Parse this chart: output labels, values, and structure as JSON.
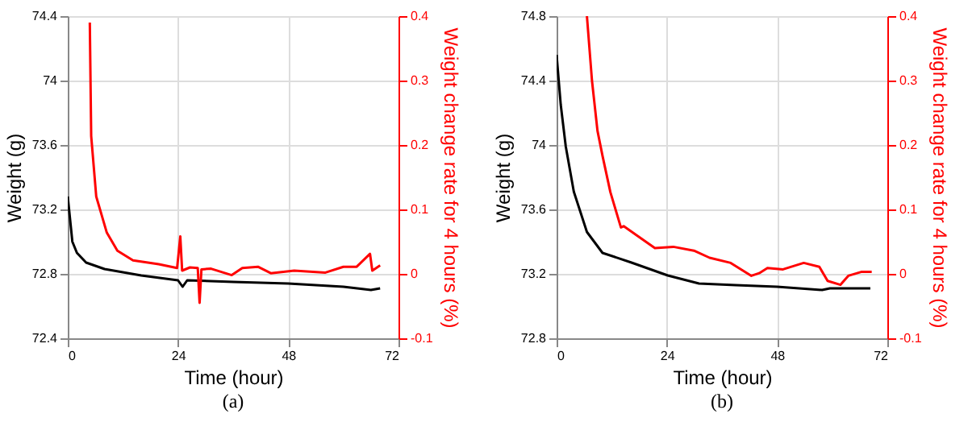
{
  "chart_data": [
    {
      "type": "line",
      "xlabel": "Time (hour)",
      "ylabel": "Weight (g)",
      "y2label": "Weight change rate for 4 hours (%)",
      "annotations": [
        "(a)"
      ],
      "xlim": [
        0,
        72
      ],
      "xticks": [
        0,
        24,
        48,
        72
      ],
      "ylim": [
        72.4,
        74.4
      ],
      "yticks": [
        72.4,
        72.8,
        73.2,
        73.6,
        74,
        74.4
      ],
      "y2lim": [
        -0.1,
        0.4
      ],
      "y2ticks": [
        -0.1,
        0,
        0.1,
        0.2,
        0.3,
        0.4
      ],
      "grid": true,
      "marker": "none",
      "line_style": "solid",
      "series": [
        {
          "color": "#000000",
          "x": [
            0,
            1,
            2,
            4,
            8,
            16,
            24,
            25,
            26,
            36,
            48,
            60,
            66,
            68
          ],
          "values": [
            73.28,
            73.0,
            72.93,
            72.87,
            72.83,
            72.79,
            72.76,
            72.72,
            72.76,
            72.75,
            72.74,
            72.72,
            72.7,
            72.71
          ]
        },
        {
          "color": "#ff0000",
          "axis": "y2",
          "x": [
            4.8,
            5.1,
            6.2,
            8.5,
            10.8,
            14.2,
            19.8,
            23.8,
            24.5,
            24.9,
            26.6,
            28.3,
            28.7,
            29.1,
            31.2,
            35.7,
            38,
            41.4,
            44.2,
            49.3,
            56.1,
            60,
            62.9,
            65.8,
            66.3,
            68
          ],
          "values": [
            0.39,
            0.214,
            0.12,
            0.064,
            0.036,
            0.021,
            0.015,
            0.009,
            0.058,
            0.005,
            0.01,
            0.009,
            -0.045,
            0.007,
            0.008,
            -0.002,
            0.009,
            0.011,
            0.001,
            0.005,
            0.002,
            0.011,
            0.011,
            0.031,
            0.005,
            0.013
          ]
        }
      ]
    },
    {
      "type": "line",
      "xlabel": "Time (hour)",
      "ylabel": "Weight (g)",
      "y2label": "Weight change rate for 4 hours (%)",
      "annotations": [
        "(b)"
      ],
      "xlim": [
        0,
        72
      ],
      "xticks": [
        0,
        24,
        48,
        72
      ],
      "ylim": [
        72.8,
        74.8
      ],
      "yticks": [
        72.8,
        73.2,
        73.6,
        74,
        74.4,
        74.8
      ],
      "y2lim": [
        -0.1,
        0.4
      ],
      "y2ticks": [
        -0.1,
        0,
        0.1,
        0.2,
        0.3,
        0.4
      ],
      "grid": true,
      "marker": "none",
      "line_style": "solid",
      "series": [
        {
          "color": "#000000",
          "x": [
            0,
            0.9,
            2,
            3.75,
            6.6,
            10,
            16.3,
            24.2,
            31,
            39,
            48,
            57.8,
            59.5,
            68.3
          ],
          "values": [
            74.56,
            74.25,
            73.99,
            73.71,
            73.46,
            73.33,
            73.27,
            73.19,
            73.14,
            73.13,
            73.12,
            73.1,
            73.11,
            73.11
          ]
        },
        {
          "color": "#ff0000",
          "axis": "y2",
          "x": [
            6.6,
            7.7,
            8.9,
            10,
            11.7,
            14,
            14.6,
            17.4,
            21.4,
            25.4,
            29.9,
            33.3,
            37.9,
            42.4,
            44.1,
            45.9,
            49.3,
            53.8,
            57.2,
            59,
            61.8,
            63.5,
            66.3,
            68.6
          ],
          "values": [
            0.4,
            0.3,
            0.222,
            0.183,
            0.127,
            0.072,
            0.074,
            0.06,
            0.04,
            0.042,
            0.036,
            0.025,
            0.017,
            -0.003,
            0.001,
            0.009,
            0.007,
            0.017,
            0.011,
            -0.011,
            -0.017,
            -0.003,
            0.003,
            0.003
          ]
        }
      ]
    }
  ]
}
